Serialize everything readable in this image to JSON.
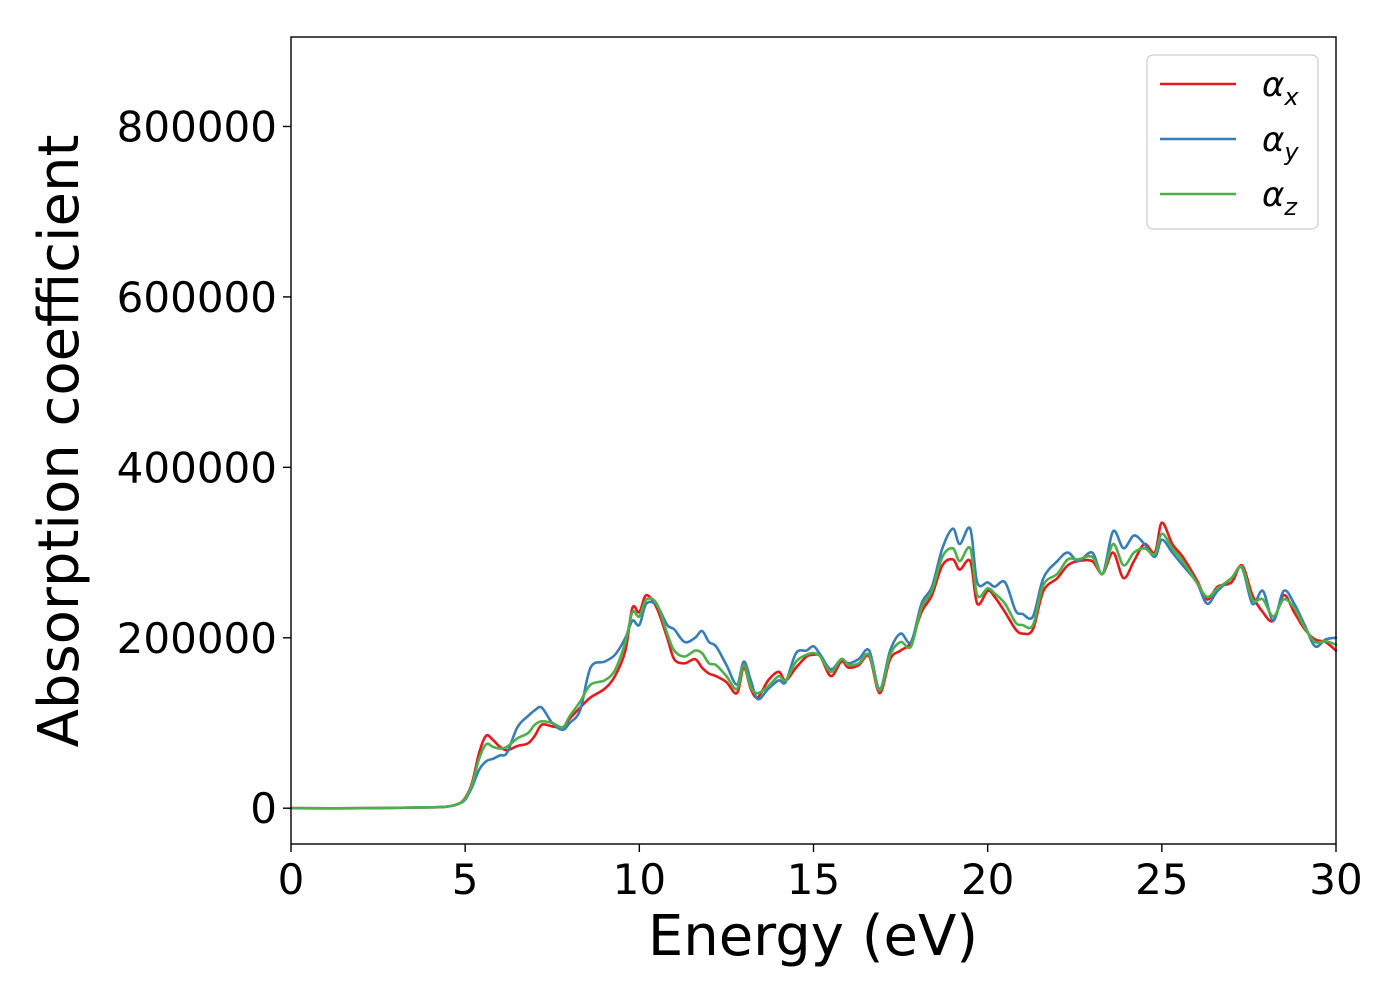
{
  "chart_data": {
    "type": "line",
    "title": "",
    "xlabel": "Energy (eV)",
    "ylabel": "Absorption coefficient",
    "xlim": [
      0,
      30
    ],
    "ylim": [
      -42000,
      905000
    ],
    "xticks": [
      0,
      5,
      10,
      15,
      20,
      25,
      30
    ],
    "yticks": [
      0,
      200000,
      400000,
      600000,
      800000
    ],
    "xtick_labels": [
      "0",
      "5",
      "10",
      "15",
      "20",
      "25",
      "30"
    ],
    "ytick_labels": [
      "0",
      "200000",
      "400000",
      "600000",
      "800000"
    ],
    "grid": false,
    "legend": "top-right",
    "series": [
      {
        "name": "α",
        "subscript": "x",
        "color": "#e41a1c",
        "points": [
          [
            0,
            0
          ],
          [
            2,
            0
          ],
          [
            4,
            1000
          ],
          [
            4.5,
            2000
          ],
          [
            4.8,
            5000
          ],
          [
            5.0,
            12000
          ],
          [
            5.2,
            30000
          ],
          [
            5.4,
            65000
          ],
          [
            5.6,
            85000
          ],
          [
            5.8,
            80000
          ],
          [
            6.0,
            72000
          ],
          [
            6.2,
            68000
          ],
          [
            6.5,
            73000
          ],
          [
            6.8,
            76000
          ],
          [
            7.0,
            85000
          ],
          [
            7.2,
            98000
          ],
          [
            7.5,
            96000
          ],
          [
            7.8,
            95000
          ],
          [
            8.0,
            105000
          ],
          [
            8.3,
            118000
          ],
          [
            8.6,
            130000
          ],
          [
            9.0,
            140000
          ],
          [
            9.3,
            155000
          ],
          [
            9.6,
            185000
          ],
          [
            9.8,
            235000
          ],
          [
            10.0,
            230000
          ],
          [
            10.2,
            250000
          ],
          [
            10.5,
            235000
          ],
          [
            10.8,
            200000
          ],
          [
            11.0,
            175000
          ],
          [
            11.3,
            170000
          ],
          [
            11.6,
            175000
          ],
          [
            11.8,
            165000
          ],
          [
            12.0,
            158000
          ],
          [
            12.2,
            155000
          ],
          [
            12.5,
            148000
          ],
          [
            12.8,
            135000
          ],
          [
            13.0,
            165000
          ],
          [
            13.2,
            140000
          ],
          [
            13.4,
            130000
          ],
          [
            13.7,
            150000
          ],
          [
            14.0,
            160000
          ],
          [
            14.2,
            150000
          ],
          [
            14.5,
            165000
          ],
          [
            14.8,
            178000
          ],
          [
            15.0,
            180000
          ],
          [
            15.2,
            178000
          ],
          [
            15.5,
            155000
          ],
          [
            15.8,
            172000
          ],
          [
            16.0,
            165000
          ],
          [
            16.3,
            168000
          ],
          [
            16.6,
            178000
          ],
          [
            16.9,
            135000
          ],
          [
            17.2,
            175000
          ],
          [
            17.5,
            185000
          ],
          [
            17.8,
            195000
          ],
          [
            18.1,
            230000
          ],
          [
            18.4,
            250000
          ],
          [
            18.7,
            285000
          ],
          [
            19.0,
            292000
          ],
          [
            19.2,
            280000
          ],
          [
            19.5,
            290000
          ],
          [
            19.7,
            240000
          ],
          [
            20.0,
            255000
          ],
          [
            20.2,
            248000
          ],
          [
            20.5,
            230000
          ],
          [
            20.8,
            210000
          ],
          [
            21.0,
            205000
          ],
          [
            21.3,
            210000
          ],
          [
            21.6,
            255000
          ],
          [
            22.0,
            270000
          ],
          [
            22.3,
            285000
          ],
          [
            22.6,
            290000
          ],
          [
            23.0,
            290000
          ],
          [
            23.3,
            275000
          ],
          [
            23.6,
            300000
          ],
          [
            23.9,
            270000
          ],
          [
            24.2,
            290000
          ],
          [
            24.5,
            310000
          ],
          [
            24.8,
            300000
          ],
          [
            25.0,
            335000
          ],
          [
            25.3,
            310000
          ],
          [
            25.6,
            295000
          ],
          [
            26.0,
            268000
          ],
          [
            26.3,
            245000
          ],
          [
            26.6,
            260000
          ],
          [
            27.0,
            265000
          ],
          [
            27.3,
            285000
          ],
          [
            27.6,
            250000
          ],
          [
            27.9,
            230000
          ],
          [
            28.2,
            220000
          ],
          [
            28.5,
            250000
          ],
          [
            28.8,
            230000
          ],
          [
            29.1,
            210000
          ],
          [
            29.4,
            198000
          ],
          [
            29.7,
            195000
          ],
          [
            30.0,
            185000
          ]
        ]
      },
      {
        "name": "α",
        "subscript": "y",
        "color": "#377eb8",
        "points": [
          [
            0,
            0
          ],
          [
            2,
            0
          ],
          [
            4,
            1000
          ],
          [
            4.5,
            2000
          ],
          [
            4.8,
            5000
          ],
          [
            5.0,
            10000
          ],
          [
            5.2,
            25000
          ],
          [
            5.4,
            45000
          ],
          [
            5.6,
            55000
          ],
          [
            5.8,
            58000
          ],
          [
            6.0,
            62000
          ],
          [
            6.2,
            65000
          ],
          [
            6.5,
            95000
          ],
          [
            6.8,
            108000
          ],
          [
            7.0,
            115000
          ],
          [
            7.2,
            118000
          ],
          [
            7.5,
            100000
          ],
          [
            7.8,
            92000
          ],
          [
            8.0,
            100000
          ],
          [
            8.3,
            115000
          ],
          [
            8.6,
            165000
          ],
          [
            9.0,
            172000
          ],
          [
            9.3,
            180000
          ],
          [
            9.6,
            200000
          ],
          [
            9.8,
            220000
          ],
          [
            10.0,
            215000
          ],
          [
            10.2,
            240000
          ],
          [
            10.5,
            238000
          ],
          [
            10.8,
            215000
          ],
          [
            11.0,
            210000
          ],
          [
            11.3,
            195000
          ],
          [
            11.6,
            200000
          ],
          [
            11.8,
            208000
          ],
          [
            12.0,
            195000
          ],
          [
            12.2,
            190000
          ],
          [
            12.5,
            168000
          ],
          [
            12.8,
            145000
          ],
          [
            13.0,
            172000
          ],
          [
            13.2,
            150000
          ],
          [
            13.4,
            128000
          ],
          [
            13.7,
            140000
          ],
          [
            14.0,
            150000
          ],
          [
            14.2,
            148000
          ],
          [
            14.5,
            182000
          ],
          [
            14.8,
            185000
          ],
          [
            15.0,
            190000
          ],
          [
            15.2,
            180000
          ],
          [
            15.5,
            163000
          ],
          [
            15.8,
            175000
          ],
          [
            16.0,
            170000
          ],
          [
            16.3,
            175000
          ],
          [
            16.6,
            185000
          ],
          [
            16.9,
            140000
          ],
          [
            17.2,
            185000
          ],
          [
            17.5,
            205000
          ],
          [
            17.8,
            195000
          ],
          [
            18.1,
            240000
          ],
          [
            18.4,
            260000
          ],
          [
            18.7,
            305000
          ],
          [
            19.0,
            328000
          ],
          [
            19.2,
            310000
          ],
          [
            19.5,
            328000
          ],
          [
            19.7,
            265000
          ],
          [
            20.0,
            265000
          ],
          [
            20.2,
            260000
          ],
          [
            20.5,
            265000
          ],
          [
            20.8,
            232000
          ],
          [
            21.0,
            228000
          ],
          [
            21.3,
            225000
          ],
          [
            21.6,
            270000
          ],
          [
            22.0,
            290000
          ],
          [
            22.3,
            300000
          ],
          [
            22.6,
            290000
          ],
          [
            23.0,
            300000
          ],
          [
            23.3,
            275000
          ],
          [
            23.6,
            325000
          ],
          [
            23.9,
            305000
          ],
          [
            24.2,
            320000
          ],
          [
            24.5,
            310000
          ],
          [
            24.8,
            295000
          ],
          [
            25.0,
            315000
          ],
          [
            25.3,
            300000
          ],
          [
            25.6,
            285000
          ],
          [
            26.0,
            265000
          ],
          [
            26.3,
            240000
          ],
          [
            26.6,
            255000
          ],
          [
            27.0,
            270000
          ],
          [
            27.3,
            282000
          ],
          [
            27.6,
            240000
          ],
          [
            27.9,
            255000
          ],
          [
            28.2,
            220000
          ],
          [
            28.5,
            255000
          ],
          [
            28.8,
            240000
          ],
          [
            29.1,
            215000
          ],
          [
            29.4,
            190000
          ],
          [
            29.7,
            198000
          ],
          [
            30.0,
            200000
          ]
        ]
      },
      {
        "name": "α",
        "subscript": "z",
        "color": "#4daf4a",
        "points": [
          [
            0,
            0
          ],
          [
            2,
            0
          ],
          [
            4,
            1000
          ],
          [
            4.5,
            2000
          ],
          [
            4.8,
            5000
          ],
          [
            5.0,
            11000
          ],
          [
            5.2,
            28000
          ],
          [
            5.4,
            58000
          ],
          [
            5.6,
            75000
          ],
          [
            5.8,
            72000
          ],
          [
            6.0,
            70000
          ],
          [
            6.2,
            72000
          ],
          [
            6.5,
            82000
          ],
          [
            6.8,
            88000
          ],
          [
            7.0,
            98000
          ],
          [
            7.2,
            102000
          ],
          [
            7.5,
            100000
          ],
          [
            7.8,
            95000
          ],
          [
            8.0,
            108000
          ],
          [
            8.3,
            125000
          ],
          [
            8.6,
            145000
          ],
          [
            9.0,
            150000
          ],
          [
            9.3,
            162000
          ],
          [
            9.6,
            195000
          ],
          [
            9.8,
            230000
          ],
          [
            10.0,
            225000
          ],
          [
            10.2,
            245000
          ],
          [
            10.5,
            240000
          ],
          [
            10.8,
            205000
          ],
          [
            11.0,
            185000
          ],
          [
            11.3,
            178000
          ],
          [
            11.6,
            185000
          ],
          [
            11.8,
            182000
          ],
          [
            12.0,
            170000
          ],
          [
            12.2,
            168000
          ],
          [
            12.5,
            155000
          ],
          [
            12.8,
            140000
          ],
          [
            13.0,
            168000
          ],
          [
            13.2,
            142000
          ],
          [
            13.4,
            135000
          ],
          [
            13.7,
            143000
          ],
          [
            14.0,
            155000
          ],
          [
            14.2,
            150000
          ],
          [
            14.5,
            172000
          ],
          [
            14.8,
            180000
          ],
          [
            15.0,
            182000
          ],
          [
            15.2,
            178000
          ],
          [
            15.5,
            160000
          ],
          [
            15.8,
            175000
          ],
          [
            16.0,
            168000
          ],
          [
            16.3,
            170000
          ],
          [
            16.6,
            180000
          ],
          [
            16.9,
            138000
          ],
          [
            17.2,
            180000
          ],
          [
            17.5,
            195000
          ],
          [
            17.8,
            190000
          ],
          [
            18.1,
            235000
          ],
          [
            18.4,
            255000
          ],
          [
            18.7,
            295000
          ],
          [
            19.0,
            305000
          ],
          [
            19.2,
            290000
          ],
          [
            19.5,
            305000
          ],
          [
            19.7,
            250000
          ],
          [
            20.0,
            258000
          ],
          [
            20.2,
            252000
          ],
          [
            20.5,
            240000
          ],
          [
            20.8,
            218000
          ],
          [
            21.0,
            215000
          ],
          [
            21.3,
            215000
          ],
          [
            21.6,
            262000
          ],
          [
            22.0,
            275000
          ],
          [
            22.3,
            292000
          ],
          [
            22.6,
            292000
          ],
          [
            23.0,
            295000
          ],
          [
            23.3,
            275000
          ],
          [
            23.6,
            310000
          ],
          [
            23.9,
            285000
          ],
          [
            24.2,
            300000
          ],
          [
            24.5,
            305000
          ],
          [
            24.8,
            298000
          ],
          [
            25.0,
            322000
          ],
          [
            25.3,
            305000
          ],
          [
            25.6,
            290000
          ],
          [
            26.0,
            265000
          ],
          [
            26.3,
            248000
          ],
          [
            26.6,
            258000
          ],
          [
            27.0,
            270000
          ],
          [
            27.3,
            283000
          ],
          [
            27.6,
            245000
          ],
          [
            27.9,
            245000
          ],
          [
            28.2,
            225000
          ],
          [
            28.5,
            245000
          ],
          [
            28.8,
            235000
          ],
          [
            29.1,
            212000
          ],
          [
            29.4,
            195000
          ],
          [
            29.7,
            196000
          ],
          [
            30.0,
            192000
          ]
        ]
      }
    ]
  }
}
